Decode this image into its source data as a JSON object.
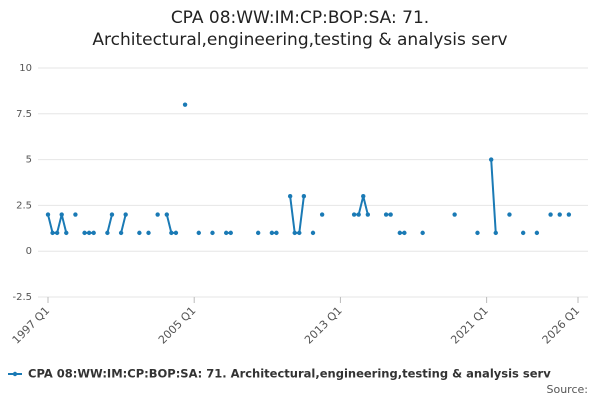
{
  "chart_data": {
    "type": "line",
    "title": [
      "CPA 08:WW:IM:CP:BOP:SA: 71.",
      "Architectural,engineering,testing & analysis serv"
    ],
    "categories": [
      "1997 Q1",
      null,
      null,
      null,
      null,
      null,
      null,
      null,
      null,
      null,
      null,
      null,
      null,
      null,
      null,
      null,
      null,
      null,
      null,
      null,
      null,
      null,
      null,
      null,
      null,
      null,
      null,
      null,
      null,
      null,
      null,
      null,
      "2005 Q1",
      null,
      null,
      null,
      null,
      null,
      null,
      null,
      null,
      null,
      null,
      null,
      null,
      null,
      null,
      null,
      null,
      null,
      null,
      null,
      null,
      null,
      null,
      null,
      null,
      null,
      null,
      null,
      null,
      null,
      null,
      null,
      "2013 Q1",
      null,
      null,
      null,
      null,
      null,
      null,
      null,
      null,
      null,
      null,
      null,
      null,
      null,
      null,
      null,
      null,
      null,
      null,
      null,
      null,
      null,
      null,
      null,
      null,
      null,
      null,
      null,
      null,
      null,
      null,
      null,
      "2021 Q1",
      null,
      null,
      null,
      null,
      null,
      null,
      null,
      null,
      null,
      null,
      null,
      null,
      null,
      null,
      null,
      null,
      null,
      null,
      null,
      "2026 Q1"
    ],
    "series": [
      {
        "name": "CPA 08:WW:IM:CP:BOP:SA: 71. Architectural,engineering,testing & analysis serv",
        "color": "#1a7ab5",
        "values": [
          2,
          1,
          1,
          2,
          1,
          null,
          2,
          null,
          1,
          1,
          1,
          null,
          null,
          1,
          2,
          null,
          1,
          2,
          null,
          null,
          1,
          null,
          1,
          null,
          2,
          null,
          2,
          1,
          1,
          null,
          8,
          null,
          null,
          1,
          null,
          null,
          1,
          null,
          null,
          1,
          1,
          null,
          null,
          null,
          null,
          null,
          1,
          null,
          null,
          1,
          1,
          null,
          null,
          3,
          1,
          1,
          3,
          null,
          1,
          null,
          2,
          null,
          null,
          null,
          null,
          null,
          null,
          2,
          2,
          3,
          2,
          null,
          null,
          null,
          2,
          2,
          null,
          1,
          1,
          null,
          null,
          null,
          1,
          null,
          null,
          null,
          null,
          null,
          null,
          2,
          null,
          null,
          null,
          null,
          1,
          null,
          null,
          5,
          1,
          null,
          null,
          2,
          null,
          null,
          1,
          null,
          null,
          1,
          null,
          null,
          2,
          null,
          2,
          null,
          2,
          null,
          null
        ]
      }
    ],
    "ylim": [
      -2.5,
      10
    ],
    "yticks": [
      -2.5,
      0,
      2.5,
      5,
      7.5,
      10
    ],
    "grid": true,
    "source": "Source:"
  }
}
